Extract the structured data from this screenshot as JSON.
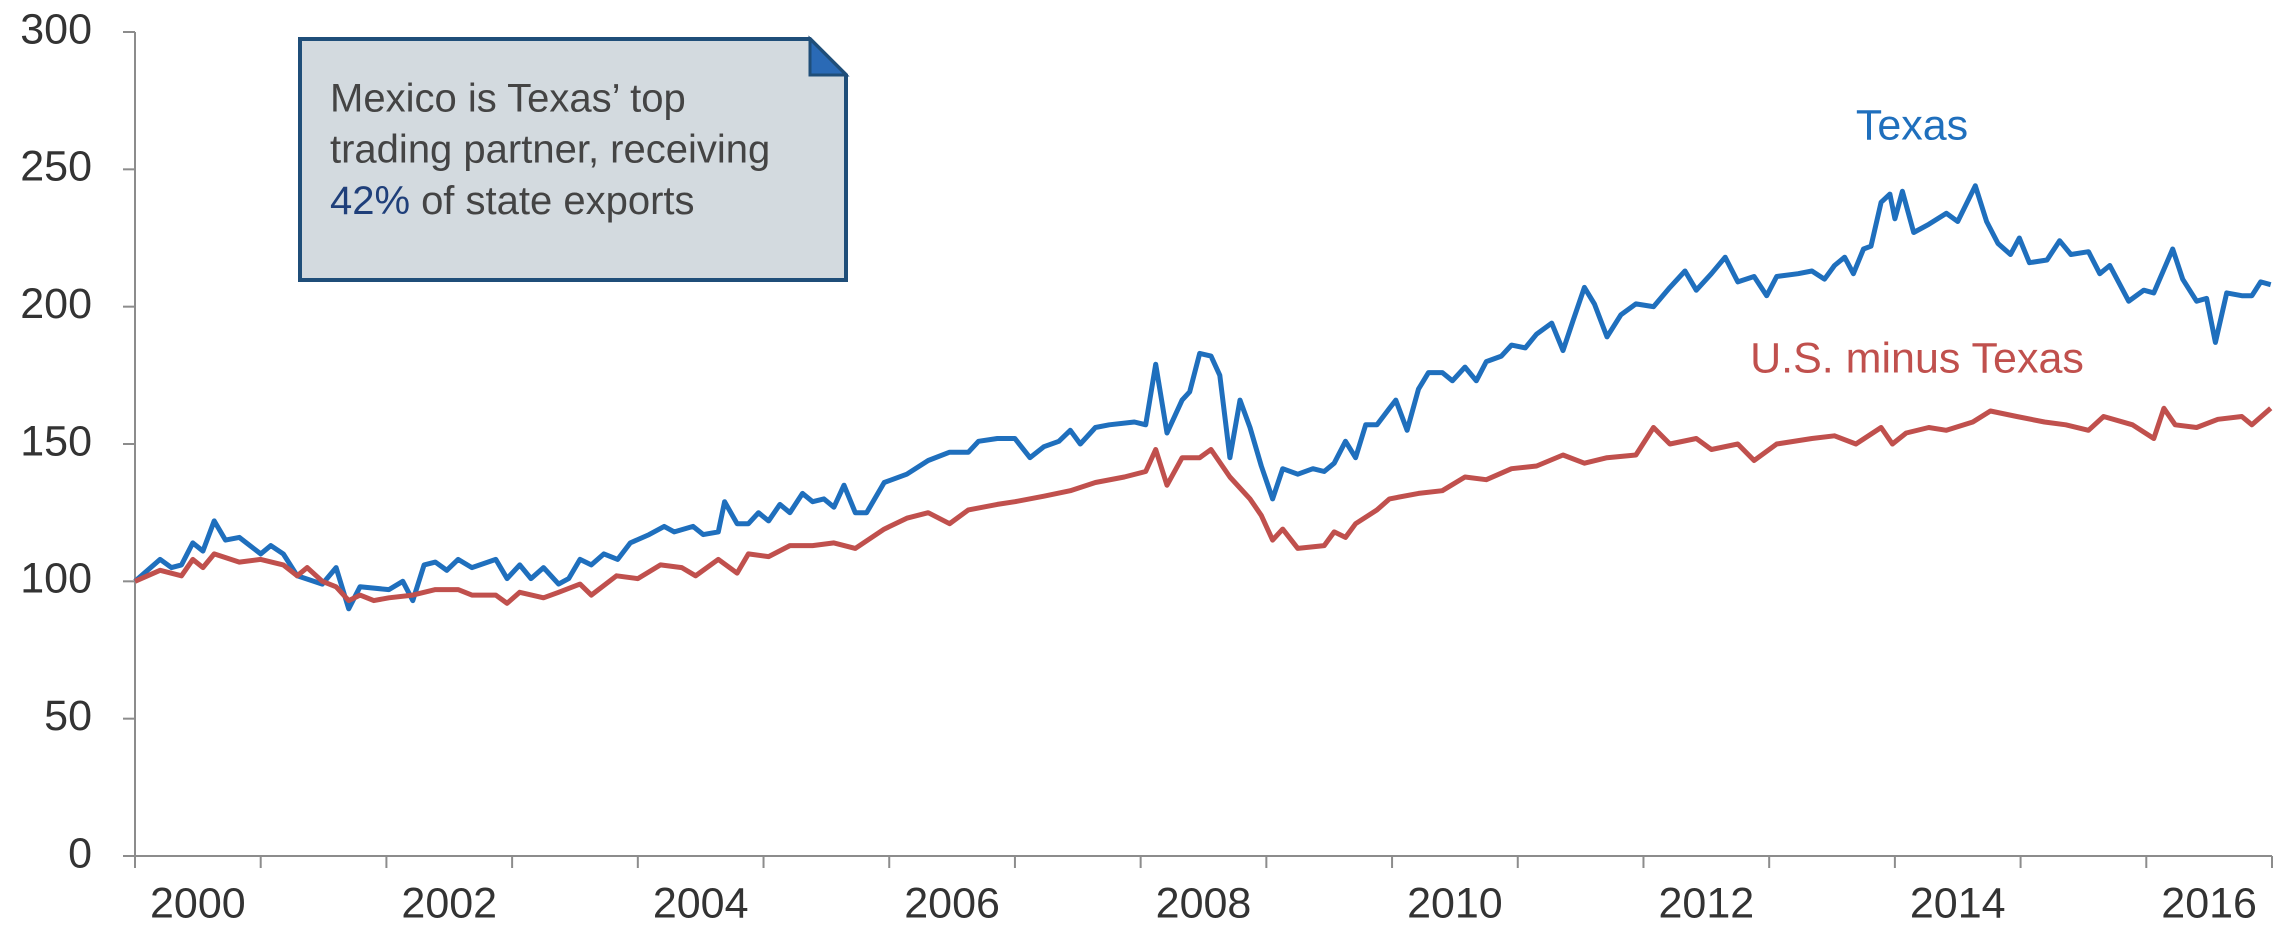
{
  "chart_data": {
    "type": "line",
    "annotation": {
      "lines": [
        "Mexico is Texas’ top",
        "trading partner, receiving"
      ],
      "highlight": "42%",
      "rest": "of state exports"
    },
    "xlim": [
      2000,
      2017
    ],
    "xticks": [
      {
        "value": 2000.5,
        "label": "2000"
      },
      {
        "value": 2002.5,
        "label": "2002"
      },
      {
        "value": 2004.5,
        "label": "2004"
      },
      {
        "value": 2006.5,
        "label": "2006"
      },
      {
        "value": 2008.5,
        "label": "2008"
      },
      {
        "value": 2010.5,
        "label": "2010"
      },
      {
        "value": 2012.5,
        "label": "2012"
      },
      {
        "value": 2014.5,
        "label": "2014"
      },
      {
        "value": 2016.5,
        "label": "2016"
      }
    ],
    "xtick_marks": [
      2000,
      2001,
      2002,
      2003,
      2004,
      2005,
      2006,
      2007,
      2008,
      2009,
      2010,
      2011,
      2012,
      2013,
      2014,
      2015,
      2016,
      2017
    ],
    "ylim": [
      0,
      300
    ],
    "yticks": [
      0,
      50,
      100,
      150,
      200,
      250,
      300
    ],
    "grid": false,
    "series": [
      {
        "name": "Texas",
        "color": "#1f6fbd",
        "x": [
          2000.0,
          2000.2,
          2000.29,
          2000.37,
          2000.46,
          2000.54,
          2000.63,
          2000.72,
          2000.83,
          2001.0,
          2001.08,
          2001.18,
          2001.29,
          2001.49,
          2001.6,
          2001.7,
          2001.79,
          2002.02,
          2002.13,
          2002.21,
          2002.3,
          2002.39,
          2002.48,
          2002.57,
          2002.68,
          2002.87,
          2002.96,
          2003.06,
          2003.15,
          2003.25,
          2003.37,
          2003.45,
          2003.54,
          2003.63,
          2003.73,
          2003.84,
          2003.94,
          2004.09,
          2004.21,
          2004.29,
          2004.44,
          2004.52,
          2004.64,
          2004.69,
          2004.79,
          2004.88,
          2004.96,
          2005.04,
          2005.13,
          2005.21,
          2005.31,
          2005.39,
          2005.48,
          2005.56,
          2005.64,
          2005.73,
          2005.82,
          2005.96,
          2006.14,
          2006.31,
          2006.48,
          2006.63,
          2006.71,
          2006.86,
          2007.0,
          2007.12,
          2007.23,
          2007.35,
          2007.44,
          2007.52,
          2007.64,
          2007.75,
          2007.95,
          2008.04,
          2008.12,
          2008.21,
          2008.33,
          2008.39,
          2008.47,
          2008.56,
          2008.63,
          2008.71,
          2008.79,
          2008.87,
          2008.96,
          2009.05,
          2009.13,
          2009.25,
          2009.37,
          2009.46,
          2009.54,
          2009.63,
          2009.71,
          2009.79,
          2009.88,
          2009.98,
          2010.03,
          2010.12,
          2010.21,
          2010.29,
          2010.4,
          2010.48,
          2010.58,
          2010.67,
          2010.75,
          2010.87,
          2010.95,
          2011.06,
          2011.15,
          2011.27,
          2011.36,
          2011.44,
          2011.53,
          2011.61,
          2011.71,
          2011.82,
          2011.94,
          2012.08,
          2012.21,
          2012.33,
          2012.42,
          2012.54,
          2012.65,
          2012.75,
          2012.88,
          2012.98,
          2013.06,
          2013.23,
          2013.34,
          2013.44,
          2013.52,
          2013.6,
          2013.67,
          2013.75,
          2013.81,
          2013.89,
          2013.96,
          2014.0,
          2014.06,
          2014.15,
          2014.27,
          2014.41,
          2014.5,
          2014.64,
          2014.73,
          2014.82,
          2014.92,
          2014.99,
          2015.07,
          2015.21,
          2015.31,
          2015.4,
          2015.54,
          2015.63,
          2015.71,
          2015.86,
          2015.98,
          2016.06,
          2016.21,
          2016.29,
          2016.4,
          2016.48,
          2016.55,
          2016.64,
          2016.76,
          2016.84,
          2016.91,
          2016.99
        ],
        "values": [
          100,
          108,
          105,
          106,
          114,
          111,
          122,
          115,
          116,
          110,
          113,
          110,
          102,
          99,
          105,
          90,
          98,
          97,
          100,
          93,
          106,
          107,
          104,
          108,
          105,
          108,
          101,
          106,
          101,
          105,
          99,
          101,
          108,
          106,
          110,
          108,
          114,
          117,
          120,
          118,
          120,
          117,
          118,
          129,
          121,
          121,
          125,
          122,
          128,
          125,
          132,
          129,
          130,
          127,
          135,
          125,
          125,
          136,
          139,
          144,
          147,
          147,
          151,
          152,
          152,
          145,
          149,
          151,
          155,
          150,
          156,
          157,
          158,
          157,
          179,
          154,
          166,
          169,
          183,
          182,
          175,
          145,
          166,
          156,
          142,
          130,
          141,
          139,
          141,
          140,
          143,
          151,
          145,
          157,
          157,
          163,
          166,
          155,
          170,
          176,
          176,
          173,
          178,
          173,
          180,
          182,
          186,
          185,
          190,
          194,
          184,
          195,
          207,
          201,
          189,
          197,
          201,
          200,
          207,
          213,
          206,
          212,
          218,
          209,
          211,
          204,
          211,
          212,
          213,
          210,
          215,
          218,
          212,
          221,
          222,
          238,
          241,
          232,
          242,
          227,
          230,
          234,
          231,
          244,
          231,
          223,
          219,
          225,
          216,
          217,
          224,
          219,
          220,
          212,
          215,
          202,
          206,
          205,
          221,
          210,
          202,
          203,
          187,
          205,
          204,
          204,
          209,
          208
        ]
      },
      {
        "name": "U.S. minus Texas",
        "color": "#c0504d",
        "x": [
          2000.0,
          2000.2,
          2000.37,
          2000.46,
          2000.54,
          2000.63,
          2000.83,
          2001.0,
          2001.18,
          2001.29,
          2001.37,
          2001.49,
          2001.6,
          2001.7,
          2001.79,
          2001.9,
          2002.02,
          2002.21,
          2002.39,
          2002.57,
          2002.68,
          2002.87,
          2002.96,
          2003.06,
          2003.25,
          2003.37,
          2003.54,
          2003.63,
          2003.83,
          2004.0,
          2004.18,
          2004.35,
          2004.46,
          2004.64,
          2004.79,
          2004.88,
          2005.04,
          2005.21,
          2005.39,
          2005.56,
          2005.73,
          2005.96,
          2006.14,
          2006.31,
          2006.48,
          2006.63,
          2006.86,
          2007.0,
          2007.23,
          2007.44,
          2007.64,
          2007.87,
          2008.04,
          2008.12,
          2008.21,
          2008.33,
          2008.47,
          2008.56,
          2008.71,
          2008.87,
          2008.96,
          2009.05,
          2009.13,
          2009.25,
          2009.46,
          2009.54,
          2009.63,
          2009.71,
          2009.88,
          2009.98,
          2010.21,
          2010.4,
          2010.58,
          2010.75,
          2010.95,
          2011.15,
          2011.36,
          2011.53,
          2011.71,
          2011.94,
          2012.08,
          2012.21,
          2012.42,
          2012.54,
          2012.75,
          2012.88,
          2013.06,
          2013.34,
          2013.52,
          2013.69,
          2013.89,
          2013.98,
          2014.09,
          2014.27,
          2014.41,
          2014.62,
          2014.76,
          2014.97,
          2015.19,
          2015.36,
          2015.54,
          2015.66,
          2015.89,
          2016.06,
          2016.14,
          2016.23,
          2016.4,
          2016.57,
          2016.76,
          2016.84,
          2016.99
        ],
        "values": [
          100,
          104,
          102,
          108,
          105,
          110,
          107,
          108,
          106,
          102,
          105,
          100,
          98,
          93,
          95,
          93,
          94,
          95,
          97,
          97,
          95,
          95,
          92,
          96,
          94,
          96,
          99,
          95,
          102,
          101,
          106,
          105,
          102,
          108,
          103,
          110,
          109,
          113,
          113,
          114,
          112,
          119,
          123,
          125,
          121,
          126,
          128,
          129,
          131,
          133,
          136,
          138,
          140,
          148,
          135,
          145,
          145,
          148,
          138,
          130,
          124,
          115,
          119,
          112,
          113,
          118,
          116,
          121,
          126,
          130,
          132,
          133,
          138,
          137,
          141,
          142,
          146,
          143,
          145,
          146,
          156,
          150,
          152,
          148,
          150,
          144,
          150,
          152,
          153,
          150,
          156,
          150,
          154,
          156,
          155,
          158,
          162,
          160,
          158,
          157,
          155,
          160,
          157,
          152,
          163,
          157,
          156,
          159,
          160,
          157,
          163
        ]
      }
    ]
  }
}
